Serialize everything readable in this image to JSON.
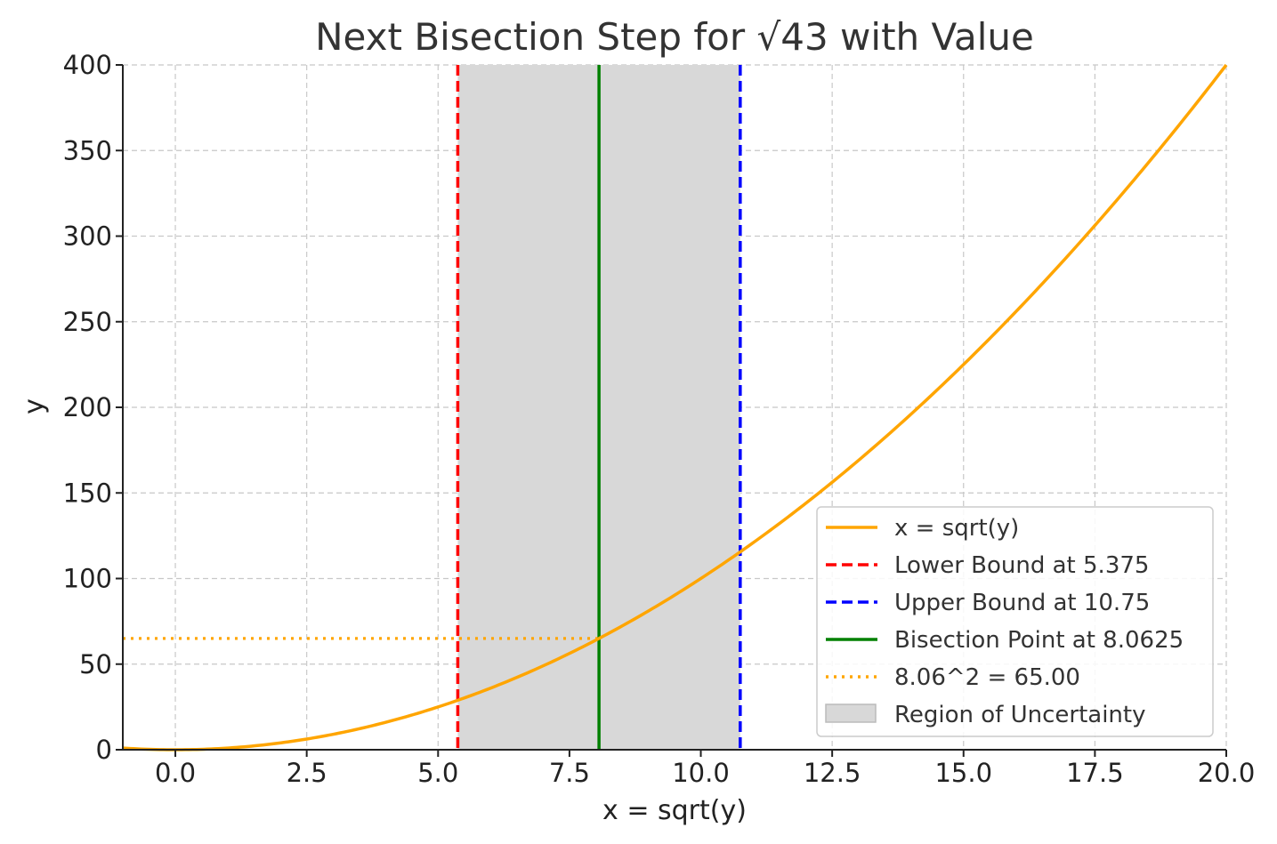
{
  "chart_data": {
    "type": "line",
    "title": "Next Bisection Step for √43 with Value",
    "xlabel": "x = sqrt(y)",
    "ylabel": "y",
    "xlim": [
      -1,
      20
    ],
    "ylim": [
      0,
      400
    ],
    "xticks": [
      0.0,
      2.5,
      5.0,
      7.5,
      10.0,
      12.5,
      15.0,
      17.5,
      20.0
    ],
    "xtick_labels": [
      "0.0",
      "2.5",
      "5.0",
      "7.5",
      "10.0",
      "12.5",
      "15.0",
      "17.5",
      "20.0"
    ],
    "yticks": [
      0,
      50,
      100,
      150,
      200,
      250,
      300,
      350,
      400
    ],
    "ytick_labels": [
      "0",
      "50",
      "100",
      "150",
      "200",
      "250",
      "300",
      "350",
      "400"
    ],
    "grid": true,
    "legend_position": "lower-right",
    "curve": {
      "name": "x = sqrt(y)",
      "function": "y = x^2",
      "x_range": [
        -1,
        20
      ],
      "color": "#FFA500"
    },
    "lower_bound": {
      "name": "Lower Bound at 5.375",
      "x": 5.375,
      "color": "#FF0000",
      "style": "dashed"
    },
    "upper_bound": {
      "name": "Upper Bound at 10.75",
      "x": 10.75,
      "color": "#0000FF",
      "style": "dashed"
    },
    "bisection_point": {
      "name": "Bisection Point at 8.0625",
      "x": 8.0625,
      "color": "#008000",
      "style": "solid"
    },
    "value_line": {
      "name": "8.06^2 = 65.00",
      "y": 65.0,
      "x_end": 8.0625,
      "color": "#FFA500",
      "style": "dotted"
    },
    "region": {
      "name": "Region of Uncertainty",
      "x_start": 5.375,
      "x_end": 10.75,
      "color": "#D8D8D8"
    }
  }
}
